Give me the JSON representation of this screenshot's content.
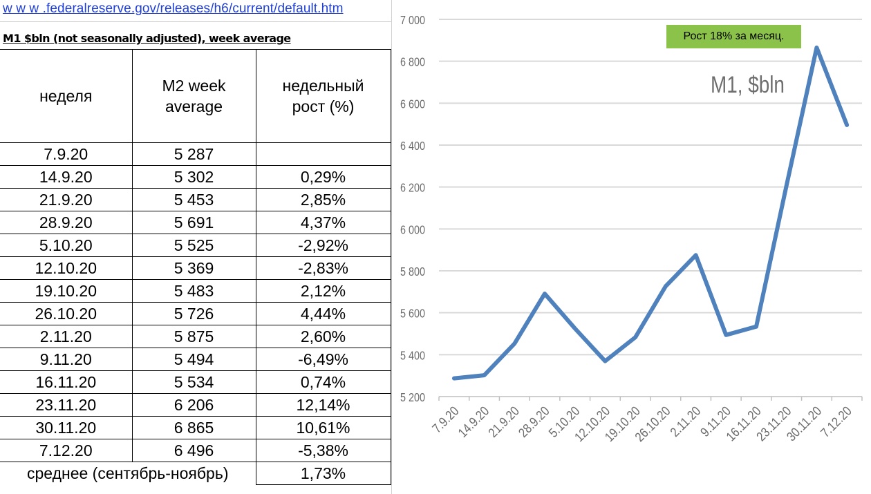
{
  "source_link": "w w w .federalreserve.gov/releases/h6/current/default.htm",
  "subtitle": "M1 $bln (not seasonally adjusted), week average",
  "table": {
    "headers": [
      "неделя",
      "M2 week average",
      "недельный рост (%)"
    ],
    "rows": [
      [
        "7.9.20",
        "5 287",
        ""
      ],
      [
        "14.9.20",
        "5 302",
        "0,29%"
      ],
      [
        "21.9.20",
        "5 453",
        "2,85%"
      ],
      [
        "28.9.20",
        "5 691",
        "4,37%"
      ],
      [
        "5.10.20",
        "5 525",
        "-2,92%"
      ],
      [
        "12.10.20",
        "5 369",
        "-2,83%"
      ],
      [
        "19.10.20",
        "5 483",
        "2,12%"
      ],
      [
        "26.10.20",
        "5 726",
        "4,44%"
      ],
      [
        "2.11.20",
        "5 875",
        "2,60%"
      ],
      [
        "9.11.20",
        "5 494",
        "-6,49%"
      ],
      [
        "16.11.20",
        "5 534",
        "0,74%"
      ],
      [
        "23.11.20",
        "6 206",
        "12,14%"
      ],
      [
        "30.11.20",
        "6 865",
        "10,61%"
      ],
      [
        "7.12.20",
        "6 496",
        "-5,38%"
      ]
    ],
    "footer": {
      "label": "среднее (сентябрь-ноябрь)",
      "value": "1,73%"
    }
  },
  "chart_data": {
    "type": "line",
    "title": "M1, $bln",
    "annotation": "Рост 18% за месяц.",
    "categories": [
      "7.9.20",
      "14.9.20",
      "21.9.20",
      "28.9.20",
      "5.10.20",
      "12.10.20",
      "19.10.20",
      "26.10.20",
      "2.11.20",
      "9.11.20",
      "16.11.20",
      "23.11.20",
      "30.11.20",
      "7.12.20"
    ],
    "series": [
      {
        "values": [
          5287,
          5302,
          5453,
          5691,
          5525,
          5369,
          5483,
          5726,
          5875,
          5494,
          5534,
          6206,
          6865,
          6496
        ]
      }
    ],
    "ylim": [
      5200,
      7000
    ],
    "yticks": [
      5200,
      5400,
      5600,
      5800,
      6000,
      6200,
      6400,
      6600,
      6800,
      7000
    ],
    "ytick_labels": [
      "5 200",
      "5 400",
      "5 600",
      "5 800",
      "6 000",
      "6 200",
      "6 400",
      "6 600",
      "6 800",
      "7 000"
    ],
    "grid": true,
    "line_color": "#4f81bd",
    "annotation_color": "#8bc34a"
  }
}
